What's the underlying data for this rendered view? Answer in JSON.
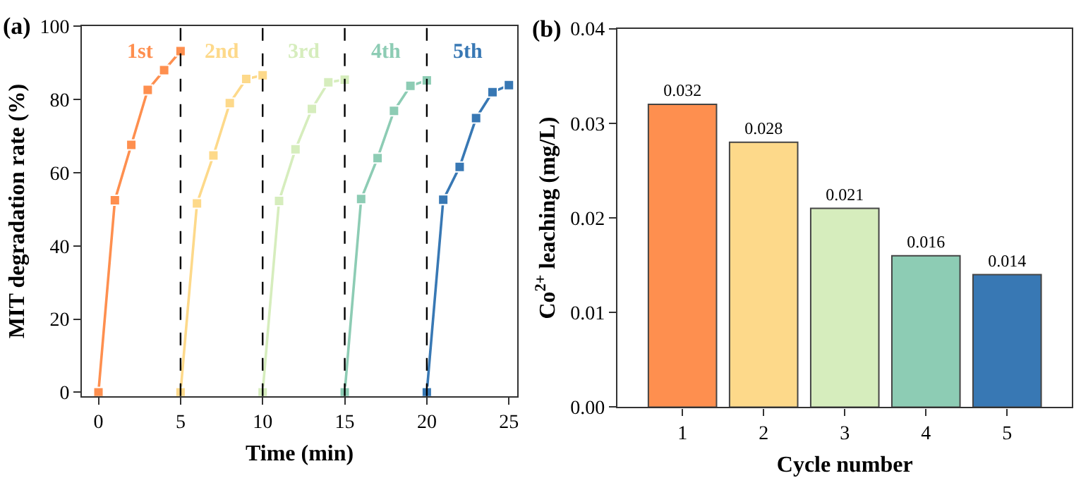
{
  "chart_data": [
    {
      "type": "line",
      "title": "(a)",
      "xlabel": "Time (min)",
      "ylabel": "MIT degradation rate (%)",
      "xlim": [
        -1,
        25.5
      ],
      "xticks": [
        0,
        5,
        10,
        15,
        20,
        25
      ],
      "ylim": [
        -1,
        100
      ],
      "yticks": [
        0,
        20,
        40,
        60,
        80,
        100
      ],
      "marker": "square",
      "line_style": "solid",
      "legend": false,
      "series": [
        {
          "name": "1st",
          "color": "#fe8f4f",
          "x": [
            0,
            1,
            2,
            3,
            4,
            5
          ],
          "values": [
            0,
            52.5,
            67.6,
            82.6,
            88,
            93.2
          ]
        },
        {
          "name": "2nd",
          "color": "#fdd98a",
          "x": [
            5,
            6,
            7,
            8,
            9,
            10
          ],
          "values": [
            0,
            51.6,
            64.7,
            79,
            85.6,
            86.6
          ]
        },
        {
          "name": "3rd",
          "color": "#d6edbd",
          "x": [
            10,
            11,
            12,
            13,
            14,
            15
          ],
          "values": [
            0,
            52.3,
            66.4,
            77.4,
            84.7,
            85.4
          ]
        },
        {
          "name": "4th",
          "color": "#8dccb4",
          "x": [
            15,
            16,
            17,
            18,
            19,
            20
          ],
          "values": [
            0,
            52.8,
            64,
            76.9,
            83.7,
            85.2
          ]
        },
        {
          "name": "5th",
          "color": "#3878b4",
          "x": [
            20,
            21,
            22,
            23,
            24,
            25
          ],
          "values": [
            0,
            52.6,
            61.6,
            74.9,
            82,
            83.9
          ]
        }
      ],
      "ref_lines": [
        {
          "axis": "x",
          "value": 5,
          "color": "#000000",
          "line_style": "dashed"
        },
        {
          "axis": "x",
          "value": 10,
          "color": "#000000",
          "line_style": "dashed"
        },
        {
          "axis": "x",
          "value": 15,
          "color": "#000000",
          "line_style": "dashed"
        },
        {
          "axis": "x",
          "value": 20,
          "color": "#000000",
          "line_style": "dashed"
        }
      ]
    },
    {
      "type": "bar",
      "title": "(b)",
      "xlabel": "Cycle number",
      "ylabel": "Co$^{2+}$ leaching (mg/L)",
      "categories": [
        "1",
        "2",
        "3",
        "4",
        "5"
      ],
      "values": [
        0.032,
        0.028,
        0.021,
        0.016,
        0.014
      ],
      "colors": [
        "#fe8f4f",
        "#fdd98a",
        "#d6edbd",
        "#8dccb4",
        "#3878b4"
      ],
      "ylim": [
        0,
        0.04
      ],
      "yticks": [
        {
          "value": 0,
          "label": "0.00"
        },
        0.01,
        0.02,
        0.03,
        0.04
      ],
      "data_labels": true,
      "legend": false
    }
  ]
}
